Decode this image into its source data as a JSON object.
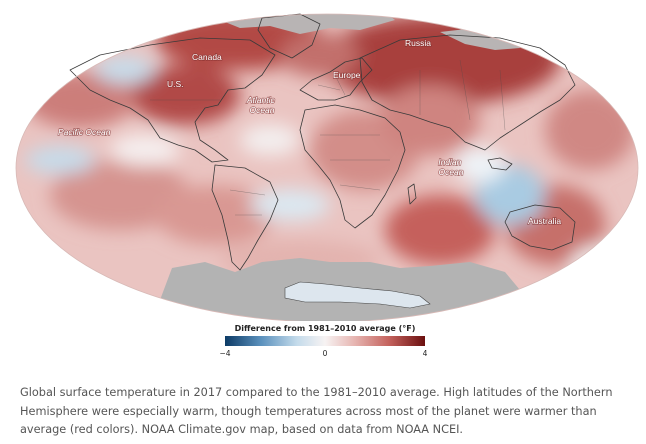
{
  "map": {
    "region_labels": [
      {
        "id": "russia",
        "text": "Russia"
      },
      {
        "id": "canada",
        "text": "Canada"
      },
      {
        "id": "us",
        "text": "U.S."
      },
      {
        "id": "europe",
        "text": "Europe"
      },
      {
        "id": "atlantic",
        "text": "Atlantic Ocean",
        "lines": [
          "Atlantic",
          "Ocean"
        ]
      },
      {
        "id": "pacific",
        "text": "Pacific Ocean"
      },
      {
        "id": "indian",
        "text": "Indian Ocean",
        "lines": [
          "Indian",
          "Ocean"
        ]
      },
      {
        "id": "australia",
        "text": "Australia"
      }
    ],
    "colors": {
      "warm_strong": "#9c2a2a",
      "warm": "#d98d8d",
      "warm_light": "#efc9c6",
      "neutral": "#f7f2f2",
      "cool": "#b7d5e8",
      "cool_strong": "#1c4f7a",
      "no_data": "#b3b3b3"
    }
  },
  "legend": {
    "title": "Difference from 1981–2010 average (°F)",
    "min": -4,
    "max": 4,
    "ticks": [
      "−4",
      "0",
      "4"
    ],
    "colors": [
      "#0d3b66",
      "#5b91bd",
      "#c4dbeb",
      "#f7f3f3",
      "#e6b4b0",
      "#c4625d",
      "#6b0f0f"
    ]
  },
  "caption": "Global surface temperature in 2017 compared to the 1981–2010 average. High latitudes of the Northern Hemisphere were especially warm, though temperatures across most of the planet were warmer than average (red colors). NOAA Climate.gov map, based on data from NOAA NCEI."
}
